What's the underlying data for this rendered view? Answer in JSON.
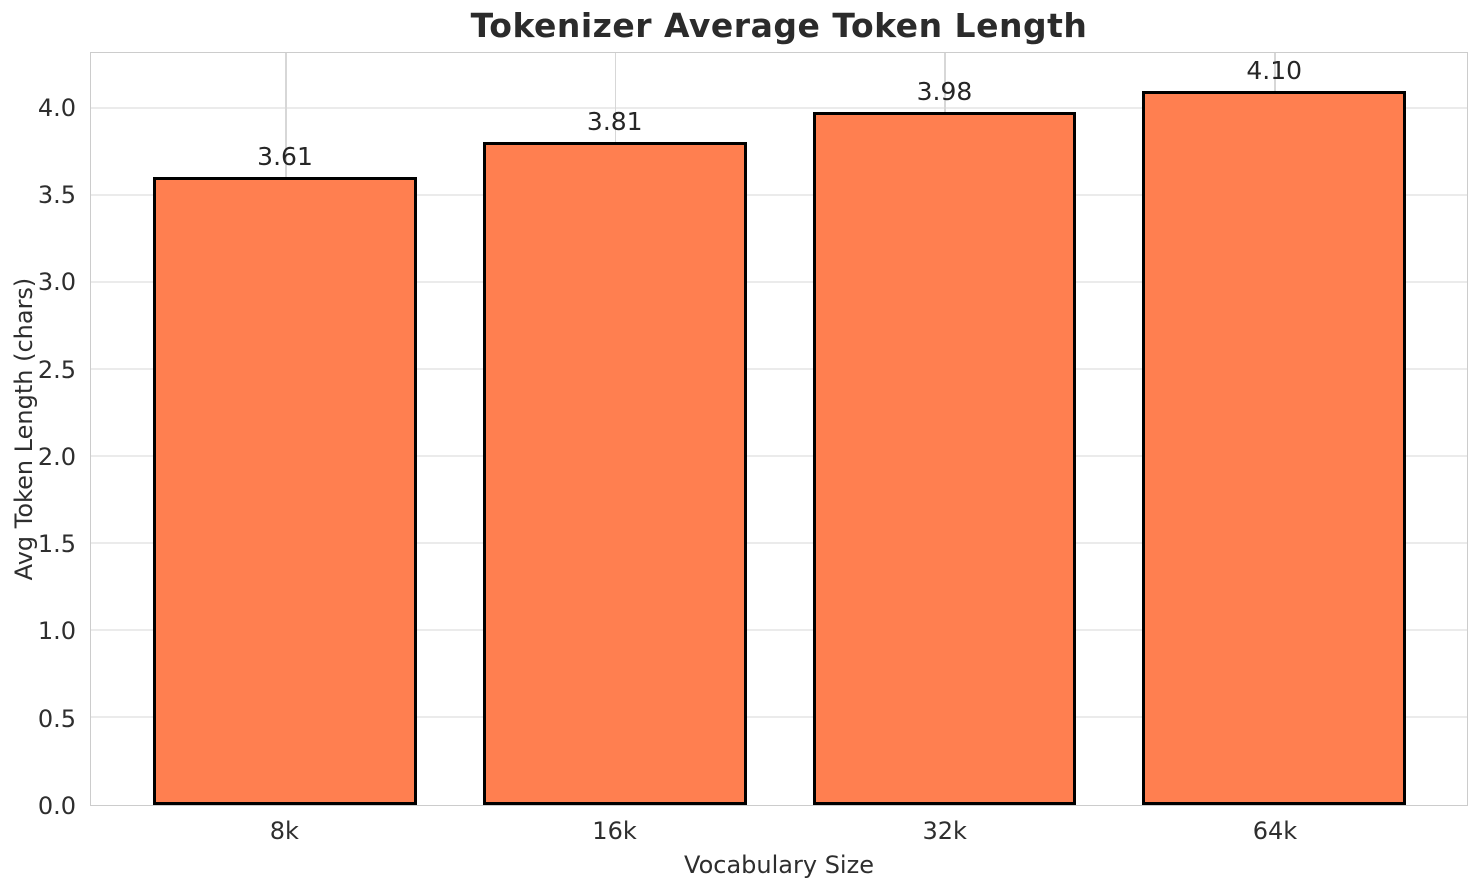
{
  "chart_data": {
    "type": "bar",
    "title": "Tokenizer Average Token Length",
    "xlabel": "Vocabulary Size",
    "ylabel": "Avg Token Length (chars)",
    "categories": [
      "8k",
      "16k",
      "32k",
      "64k"
    ],
    "values": [
      3.61,
      3.81,
      3.98,
      4.1
    ],
    "bar_labels": [
      "3.61",
      "3.81",
      "3.98",
      "4.10"
    ],
    "yticks": [
      0.0,
      0.5,
      1.0,
      1.5,
      2.0,
      2.5,
      3.0,
      3.5,
      4.0
    ],
    "ytick_labels": [
      "0.0",
      "0.5",
      "1.0",
      "1.5",
      "2.0",
      "2.5",
      "3.0",
      "3.5",
      "4.0"
    ],
    "ylim": [
      0,
      4.32
    ],
    "grid": true,
    "legend": null,
    "colors": {
      "bar_fill": "#FF7F50",
      "bar_edge": "#000000",
      "grid_horizontal": "#ebebeb",
      "grid_vertical": "#d7d7d7",
      "spine": "#cccccc",
      "text": "#262626"
    }
  }
}
